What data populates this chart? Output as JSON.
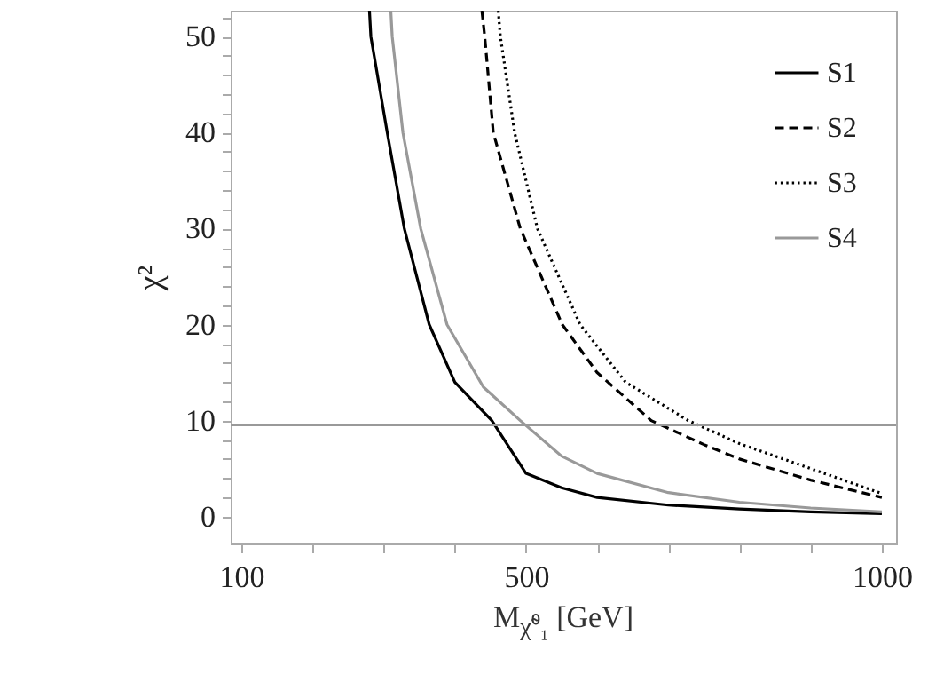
{
  "chart_data": {
    "type": "line",
    "xlabel": "M$_{χ̃⁰₁}$ [GeV]",
    "ylabel": "χ²",
    "xlim": [
      85,
      1020
    ],
    "ylim": [
      -2.8,
      52.7
    ],
    "xticks": [
      100,
      {
        "value": 200,
        "label": null
      },
      {
        "value": 300,
        "label": null
      },
      {
        "value": 400,
        "label": null
      },
      500,
      {
        "value": 600,
        "label": null
      },
      {
        "value": 700,
        "label": null
      },
      {
        "value": 800,
        "label": null
      },
      {
        "value": 900,
        "label": null
      },
      1000
    ],
    "yticks": [
      0,
      {
        "value": 2,
        "label": null
      },
      {
        "value": 4,
        "label": null
      },
      {
        "value": 6,
        "label": null
      },
      {
        "value": 8,
        "label": null
      },
      10,
      {
        "value": 12,
        "label": null
      },
      {
        "value": 14,
        "label": null
      },
      {
        "value": 16,
        "label": null
      },
      {
        "value": 18,
        "label": null
      },
      20,
      {
        "value": 22,
        "label": null
      },
      {
        "value": 24,
        "label": null
      },
      {
        "value": 26,
        "label": null
      },
      {
        "value": 28,
        "label": null
      },
      30,
      {
        "value": 32,
        "label": null
      },
      {
        "value": 34,
        "label": null
      },
      {
        "value": 36,
        "label": null
      },
      {
        "value": 38,
        "label": null
      },
      40,
      {
        "value": 42,
        "label": null
      },
      {
        "value": 44,
        "label": null
      },
      {
        "value": 46,
        "label": null
      },
      {
        "value": 48,
        "label": null
      },
      50,
      {
        "value": 52,
        "label": null
      }
    ],
    "grid": false,
    "legend": "top right",
    "ref_lines": [
      {
        "axis": "y",
        "value": 9.5,
        "color": "#999999"
      }
    ],
    "series": [
      {
        "name": "S1",
        "color": "#000000",
        "line_style": "solid",
        "x": [
          280,
          282,
          305,
          329,
          364,
          400,
          452,
          500,
          550,
          600,
          700,
          800,
          900,
          1000
        ],
        "values": [
          52.7,
          50,
          40,
          30,
          20,
          14,
          10,
          4.5,
          3,
          2,
          1.2,
          0.8,
          0.5,
          0.3
        ]
      },
      {
        "name": "S2",
        "color": "#000000",
        "line_style": "dashed",
        "x": [
          438,
          442,
          454,
          492,
          551,
          600,
          676,
          750,
          800,
          900,
          1000
        ],
        "values": [
          52.7,
          50,
          40,
          30,
          20,
          15,
          10,
          7.5,
          6,
          3.8,
          2
        ]
      },
      {
        "name": "S3",
        "color": "#000000",
        "line_style": "dotted",
        "x": [
          461,
          464,
          484,
          516,
          576,
          640,
          728,
          800,
          900,
          1000
        ],
        "values": [
          52.7,
          50,
          40,
          30,
          20,
          14,
          10,
          7.6,
          5,
          2.4
        ]
      },
      {
        "name": "S4",
        "color": "#999999",
        "line_style": "solid",
        "x": [
          310,
          312,
          327,
          352,
          389,
          440,
          492,
          550,
          600,
          700,
          800,
          900,
          1000
        ],
        "values": [
          52.7,
          50,
          40,
          30,
          20,
          13.5,
          10,
          6.3,
          4.5,
          2.5,
          1.5,
          0.9,
          0.5
        ]
      }
    ]
  }
}
